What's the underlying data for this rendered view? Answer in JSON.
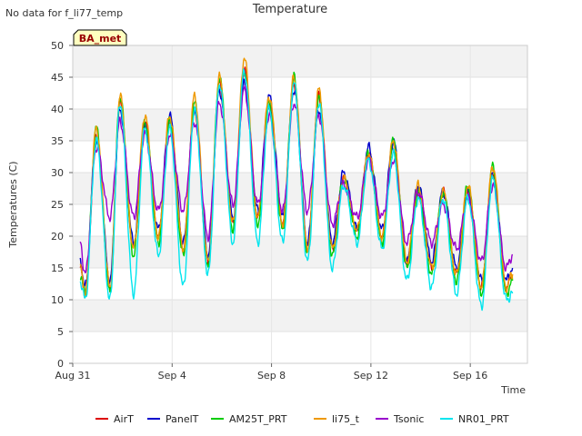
{
  "header": {
    "no_data_note": "No data for f_li77_temp"
  },
  "badge": {
    "label": "BA_met"
  },
  "chart_data": {
    "type": "line",
    "title": "Temperature",
    "xlabel": "Time",
    "ylabel": "Temperatures (C)",
    "x_unit": "days since Aug 31",
    "xlim": [
      0,
      18.3
    ],
    "ylim": [
      0,
      50
    ],
    "yticks": [
      0,
      5,
      10,
      15,
      20,
      25,
      30,
      35,
      40,
      45,
      50
    ],
    "xticks": [
      {
        "pos": 0,
        "label": "Aug 31"
      },
      {
        "pos": 4,
        "label": "Sep 4"
      },
      {
        "pos": 8,
        "label": "Sep 8"
      },
      {
        "pos": 12,
        "label": "Sep 12"
      },
      {
        "pos": 16,
        "label": "Sep 16"
      }
    ],
    "grid": true,
    "legend_position": "bottom",
    "x": [
      0.3,
      0.5,
      0.95,
      1.5,
      1.9,
      2.45,
      2.9,
      3.45,
      3.9,
      4.45,
      4.9,
      5.45,
      5.9,
      6.45,
      6.9,
      7.45,
      7.9,
      8.45,
      8.9,
      9.45,
      9.9,
      10.45,
      10.9,
      11.45,
      11.9,
      12.45,
      12.9,
      13.45,
      13.9,
      14.45,
      14.9,
      15.45,
      15.9,
      16.45,
      16.9,
      17.45,
      17.7
    ],
    "series": [
      {
        "name": "AirT",
        "color": "#dd0000",
        "values": [
          15,
          11,
          36,
          12,
          41,
          18,
          38,
          20,
          38,
          18,
          40,
          16,
          44,
          22,
          46,
          23,
          41,
          22,
          44,
          18,
          42,
          18,
          29,
          21,
          33,
          20,
          34,
          16,
          27,
          15,
          27,
          14,
          27,
          12,
          30,
          12,
          14
        ]
      },
      {
        "name": "PanelT",
        "color": "#0000cc",
        "values": [
          16,
          12,
          35,
          13,
          40,
          19,
          37,
          21,
          39,
          19,
          40,
          17,
          43,
          23,
          44,
          24,
          42,
          23,
          43,
          19,
          40,
          19,
          30,
          21,
          34,
          21,
          35,
          16,
          28,
          16,
          27,
          15,
          27,
          13,
          30,
          13,
          15
        ]
      },
      {
        "name": "AM25T_PRT",
        "color": "#00cc00",
        "values": [
          14,
          11,
          37,
          11,
          42,
          17,
          38,
          19,
          38,
          17,
          41,
          15,
          45,
          21,
          46,
          22,
          41,
          21,
          45,
          17,
          42,
          17,
          29,
          20,
          33,
          19,
          35,
          15,
          27,
          14,
          27,
          13,
          28,
          11,
          31,
          11,
          13
        ]
      },
      {
        "name": "li75_t",
        "color": "#ee9900",
        "values": [
          15,
          11,
          37,
          12,
          42,
          18,
          39,
          20,
          39,
          18,
          42,
          16,
          45,
          22,
          48,
          23,
          42,
          22,
          45,
          18,
          43,
          18,
          29,
          21,
          33,
          20,
          35,
          16,
          28,
          15,
          27,
          14,
          28,
          12,
          31,
          12,
          14
        ]
      },
      {
        "name": "Tsonic",
        "color": "#9900cc",
        "values": [
          19,
          14,
          34,
          23,
          38,
          23,
          36,
          24,
          36,
          24,
          38,
          20,
          41,
          25,
          43,
          25,
          39,
          24,
          41,
          24,
          39,
          22,
          28,
          23,
          32,
          23,
          32,
          19,
          27,
          19,
          25,
          18,
          26,
          16,
          28,
          15,
          17
        ]
      },
      {
        "name": "NR01_PRT",
        "color": "#00e5ee",
        "values": [
          13,
          10,
          35,
          10,
          41,
          11,
          37,
          17,
          37,
          12,
          40,
          14,
          44,
          19,
          46,
          19,
          40,
          19,
          44,
          16,
          41,
          15,
          28,
          19,
          32,
          18,
          33,
          13,
          26,
          12,
          26,
          11,
          26,
          9,
          29,
          10,
          11
        ]
      }
    ]
  }
}
